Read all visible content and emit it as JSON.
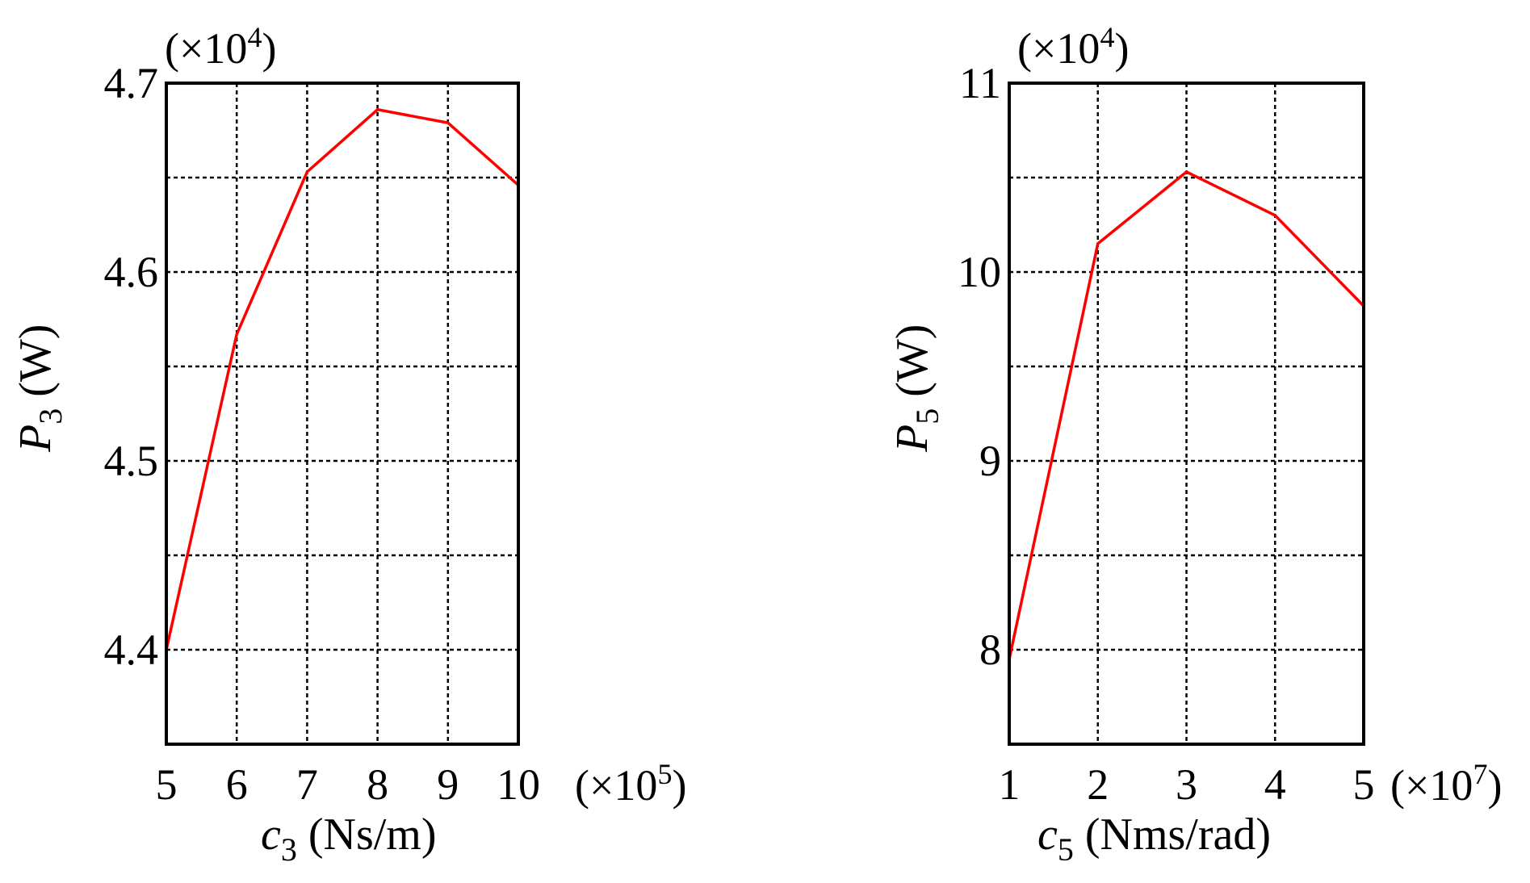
{
  "chart_data": [
    {
      "type": "line",
      "multiplier_y": {
        "base": "(×10",
        "exp": "4",
        "close": ")"
      },
      "multiplier_x": {
        "base": "(×10",
        "exp": "5",
        "close": ")"
      },
      "ylabel": {
        "main": "P",
        "sub": "3",
        "unit": " (W)"
      },
      "xlabel": {
        "main": "c",
        "sub": "3",
        "unit": " (Ns/m)"
      },
      "xlim": [
        5,
        10
      ],
      "ylim": [
        4.35,
        4.7
      ],
      "xticks": [
        5,
        6,
        7,
        8,
        9,
        10
      ],
      "xtick_labels": [
        "5",
        "6",
        "7",
        "8",
        "9",
        "10"
      ],
      "yticks_labeled": [
        4.4,
        4.5,
        4.6,
        4.7
      ],
      "ytick_labels": [
        "4.4",
        "4.5",
        "4.6",
        "4.7"
      ],
      "y_gridlines": [
        4.4,
        4.45,
        4.5,
        4.55,
        4.6,
        4.65,
        4.7
      ],
      "grid": true,
      "series": [
        {
          "color": "#ff0000",
          "x": [
            5,
            6,
            7,
            8,
            9,
            10
          ],
          "y": [
            4.4,
            4.567,
            4.653,
            4.686,
            4.679,
            4.646
          ]
        }
      ]
    },
    {
      "type": "line",
      "multiplier_y": {
        "base": "(×10",
        "exp": "4",
        "close": ")"
      },
      "multiplier_x": {
        "base": "(×10",
        "exp": "7",
        "close": ")"
      },
      "ylabel": {
        "main": "P",
        "sub": "5",
        "unit": " (W)"
      },
      "xlabel": {
        "main": "c",
        "sub": "5",
        "unit": " (Nms/rad)"
      },
      "xlim": [
        1,
        5
      ],
      "ylim": [
        7.5,
        11
      ],
      "xticks": [
        1,
        2,
        3,
        4,
        5
      ],
      "xtick_labels": [
        "1",
        "2",
        "3",
        "4",
        "5"
      ],
      "yticks_labeled": [
        8,
        9,
        10,
        11
      ],
      "ytick_labels": [
        "8",
        "9",
        "10",
        "11"
      ],
      "y_gridlines": [
        8,
        8.5,
        9,
        9.5,
        10,
        10.5,
        11
      ],
      "grid": true,
      "series": [
        {
          "color": "#ff0000",
          "x": [
            1,
            2,
            3,
            4,
            5
          ],
          "y": [
            7.95,
            10.15,
            10.53,
            10.3,
            9.82
          ]
        }
      ]
    }
  ]
}
